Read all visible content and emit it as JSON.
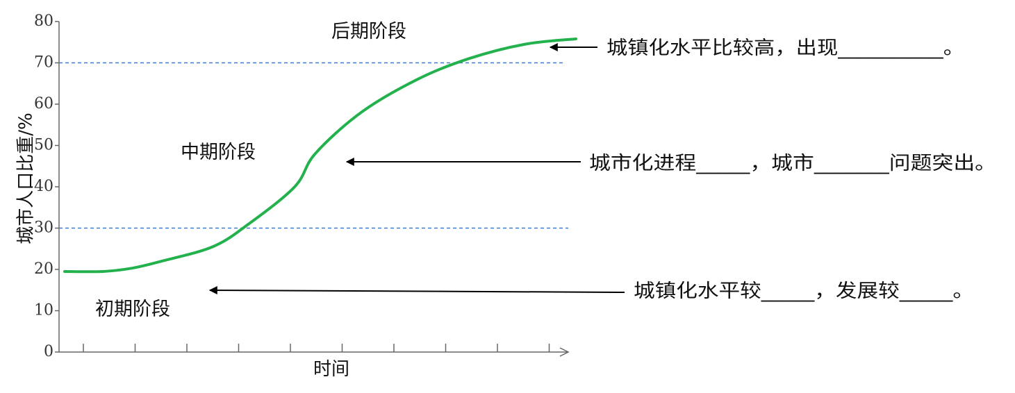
{
  "chart_data": {
    "type": "line",
    "xlabel": "时间",
    "ylabel": "城市人口比重/%",
    "ylim": [
      0,
      80
    ],
    "yticks": [
      "0",
      "10",
      "20",
      "30",
      "40",
      "50",
      "60",
      "70",
      "80"
    ],
    "x_tick_count": 10,
    "reference_lines": [
      30,
      70
    ],
    "grid": false,
    "series_color": "#22b14c",
    "reference_line_color": "#3a7bd5",
    "stages": {
      "early": "初期阶段",
      "middle": "中期阶段",
      "late": "后期阶段"
    },
    "annotations": {
      "late": "城镇化水平比较高，出现__________。",
      "middle": "城市化进程_____，城市_______问题突出。",
      "early": "城镇化水平较_____，发展较_____。"
    },
    "series": [
      {
        "x": [
          0.0,
          0.075,
          0.132,
          0.19,
          0.29,
          0.36,
          0.45,
          0.49,
          0.58,
          0.69,
          0.79,
          0.9,
          1.0
        ],
        "values": [
          19.5,
          19.5,
          20.3,
          22.0,
          25.5,
          31.0,
          40.0,
          48.0,
          58.0,
          66.0,
          71.0,
          74.5,
          75.8
        ]
      }
    ]
  }
}
